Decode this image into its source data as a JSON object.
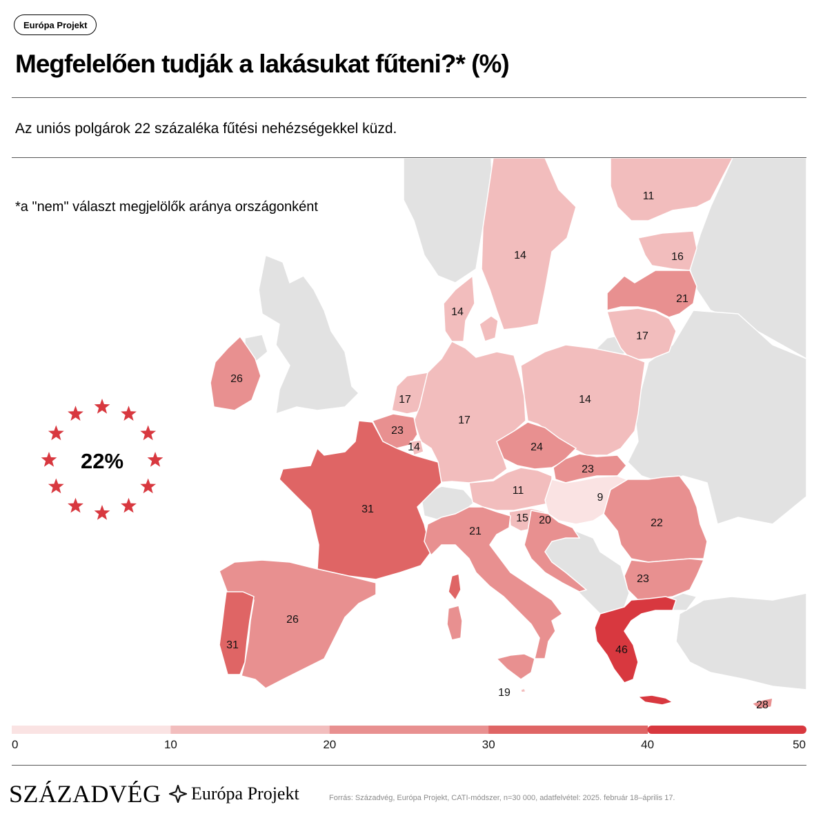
{
  "tag": "Európa Projekt",
  "title": "Megfelelően tudják a lakásukat fűteni?* (%)",
  "subtitle": "Az uniós polgárok 22 százaléka fűtési nehézségekkel küzd.",
  "note": "*a \"nem\" választ megjelölők aránya országonként",
  "eu_badge": {
    "value": "22%"
  },
  "chart_data": {
    "type": "choropleth",
    "value_unit": "%",
    "scale": {
      "bins": [
        0,
        10,
        20,
        30,
        40,
        50
      ],
      "tick_labels": [
        "0",
        "10",
        "20",
        "30",
        "40",
        "50"
      ],
      "colors": [
        "#fae3e3",
        "#f2bdbd",
        "#e89090",
        "#df6565",
        "#d8383f"
      ]
    },
    "regions": [
      {
        "label": "11",
        "value": 11
      },
      {
        "label": "14",
        "value": 14
      },
      {
        "label": "16",
        "value": 16
      },
      {
        "label": "21",
        "value": 21
      },
      {
        "label": "17",
        "value": 17
      },
      {
        "label": "14",
        "value": 14
      },
      {
        "label": "26",
        "value": 26
      },
      {
        "label": "17",
        "value": 17
      },
      {
        "label": "17",
        "value": 17
      },
      {
        "label": "14",
        "value": 14
      },
      {
        "label": "23",
        "value": 23
      },
      {
        "label": "14",
        "value": 14
      },
      {
        "label": "24",
        "value": 24
      },
      {
        "label": "23",
        "value": 23
      },
      {
        "label": "31",
        "value": 31
      },
      {
        "label": "11",
        "value": 11
      },
      {
        "label": "9",
        "value": 9
      },
      {
        "label": "15",
        "value": 15
      },
      {
        "label": "20",
        "value": 20
      },
      {
        "label": "21",
        "value": 21
      },
      {
        "label": "22",
        "value": 22
      },
      {
        "label": "23",
        "value": 23
      },
      {
        "label": "26",
        "value": 26
      },
      {
        "label": "31",
        "value": 31
      },
      {
        "label": "46",
        "value": 46
      },
      {
        "label": "19",
        "value": 19
      },
      {
        "label": "28",
        "value": 28
      }
    ],
    "background_color": "#e2e2e2",
    "star_color": "#d8383f"
  },
  "footer": {
    "brand": "SZÁZADVÉG",
    "ep_logo": "Európa Projekt",
    "source": "Forrás: Századvég, Európa Projekt, CATI-módszer, n=30 000, adatfelvétel: 2025. február 18–április 17."
  }
}
